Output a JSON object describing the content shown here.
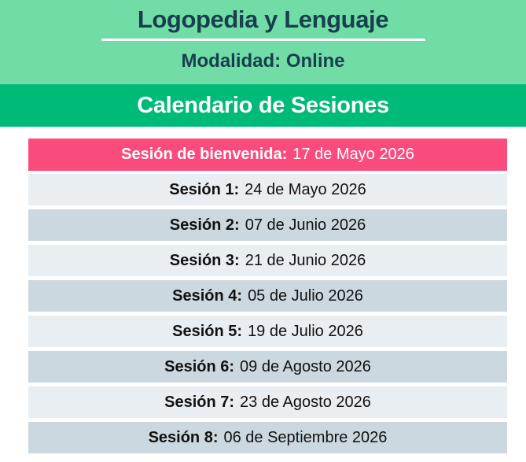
{
  "header": {
    "title": "Logopedia y Lenguaje",
    "subtitle": "Modalidad: Online"
  },
  "banner": {
    "title": "Calendario de Sesiones"
  },
  "schedule": {
    "welcome": {
      "label": "Sesión de bienvenida:",
      "date": "17 de Mayo 2026"
    },
    "sessions": [
      {
        "label": "Sesión 1:",
        "date": "24 de Mayo 2026"
      },
      {
        "label": "Sesión 2:",
        "date": "07 de Junio 2026"
      },
      {
        "label": "Sesión 3:",
        "date": "21 de Junio 2026"
      },
      {
        "label": "Sesión 4:",
        "date": "05 de Julio 2026"
      },
      {
        "label": "Sesión 5:",
        "date": "19 de Julio 2026"
      },
      {
        "label": "Sesión 6:",
        "date": "09 de Agosto 2026"
      },
      {
        "label": "Sesión 7:",
        "date": "23 de Agosto 2026"
      },
      {
        "label": "Sesión 8:",
        "date": "06 de Septiembre 2026"
      }
    ]
  },
  "colors": {
    "header_bg": "#72DCA7",
    "header_text": "#173F4D",
    "banner_bg": "#00BA78",
    "welcome_bg": "#FA4B7D",
    "row_light": "#E9EEF2",
    "row_dark": "#CBD8DF",
    "row_text": "#111111"
  }
}
